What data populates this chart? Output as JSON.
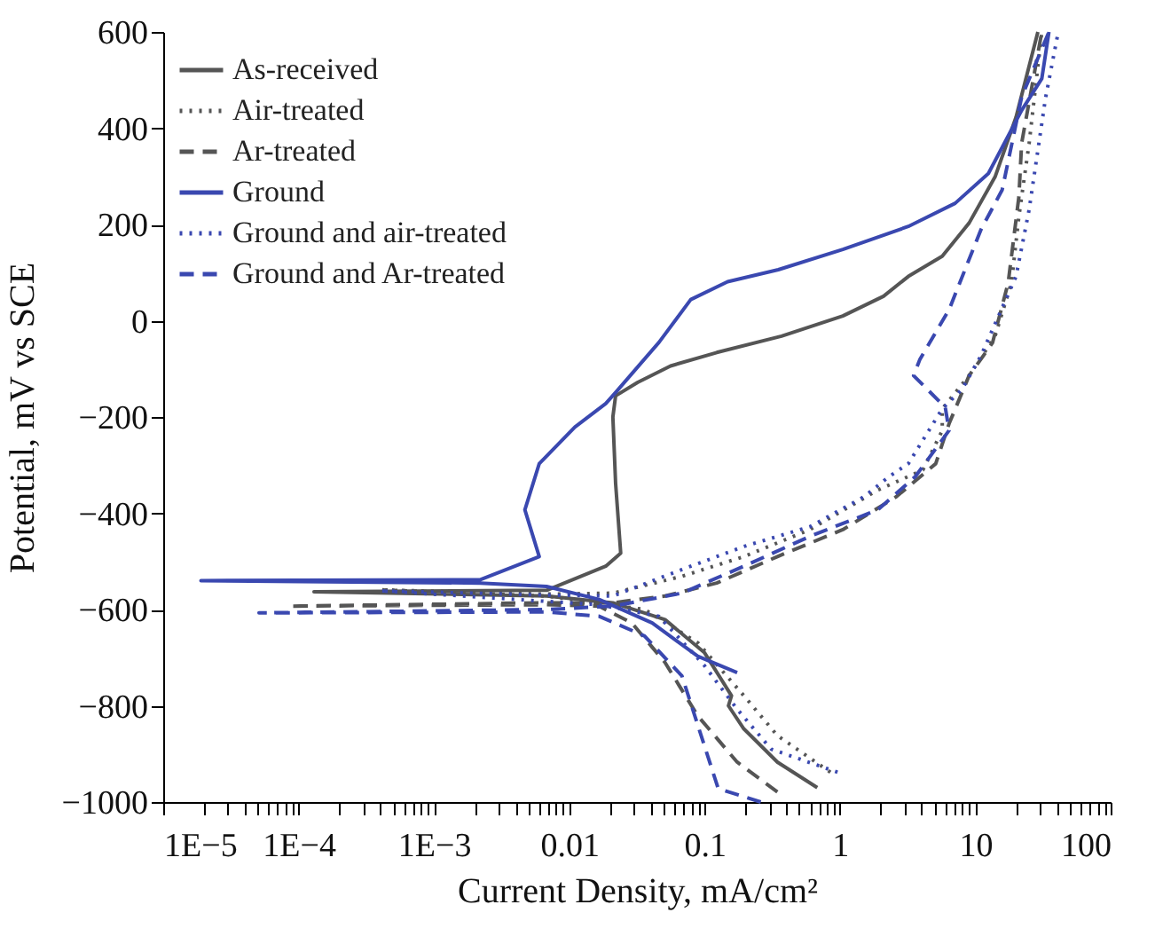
{
  "chart_data": {
    "type": "line",
    "xlabel": "Current Density, mA/cm²",
    "ylabel": "Potential, mV vs SCE",
    "log": "x",
    "xlim": [
      1e-05,
      100
    ],
    "ylim": [
      -1000,
      600
    ],
    "xticks": [
      {
        "value": 1e-05,
        "label": "1E−5"
      },
      {
        "value": 2e-05,
        "label": null
      },
      {
        "value": 3e-05,
        "label": null
      },
      {
        "value": 4e-05,
        "label": null
      },
      {
        "value": 5e-05,
        "label": null
      },
      {
        "value": 6e-05,
        "label": null
      },
      {
        "value": 7e-05,
        "label": null
      },
      {
        "value": 8e-05,
        "label": null
      },
      {
        "value": 9e-05,
        "label": null
      },
      {
        "value": 0.0001,
        "label": "1E−4"
      },
      {
        "value": 0.0002,
        "label": null
      },
      {
        "value": 0.0003,
        "label": null
      },
      {
        "value": 0.0004,
        "label": null
      },
      {
        "value": 0.0005,
        "label": null
      },
      {
        "value": 0.0006,
        "label": null
      },
      {
        "value": 0.0007,
        "label": null
      },
      {
        "value": 0.0008,
        "label": null
      },
      {
        "value": 0.0009,
        "label": null
      },
      {
        "value": 0.001,
        "label": "1E−3"
      },
      {
        "value": 0.002,
        "label": null
      },
      {
        "value": 0.003,
        "label": null
      },
      {
        "value": 0.004,
        "label": null
      },
      {
        "value": 0.005,
        "label": null
      },
      {
        "value": 0.006,
        "label": null
      },
      {
        "value": 0.007,
        "label": null
      },
      {
        "value": 0.008,
        "label": null
      },
      {
        "value": 0.009,
        "label": null
      },
      0.01,
      {
        "value": 0.02,
        "label": null
      },
      {
        "value": 0.03,
        "label": null
      },
      {
        "value": 0.04,
        "label": null
      },
      {
        "value": 0.05,
        "label": null
      },
      {
        "value": 0.06,
        "label": null
      },
      {
        "value": 0.07,
        "label": null
      },
      {
        "value": 0.08,
        "label": null
      },
      {
        "value": 0.09,
        "label": null
      },
      0.1,
      {
        "value": 0.2,
        "label": null
      },
      {
        "value": 0.3,
        "label": null
      },
      {
        "value": 0.4,
        "label": null
      },
      {
        "value": 0.5,
        "label": null
      },
      {
        "value": 0.6,
        "label": null
      },
      {
        "value": 0.7,
        "label": null
      },
      {
        "value": 0.8,
        "label": null
      },
      {
        "value": 0.9,
        "label": null
      },
      1,
      {
        "value": 2,
        "label": null
      },
      {
        "value": 3,
        "label": null
      },
      {
        "value": 4,
        "label": null
      },
      {
        "value": 5,
        "label": null
      },
      {
        "value": 6,
        "label": null
      },
      {
        "value": 7,
        "label": null
      },
      {
        "value": 8,
        "label": null
      },
      {
        "value": 9,
        "label": null
      },
      10,
      {
        "value": 20,
        "label": null
      },
      {
        "value": 30,
        "label": null
      },
      {
        "value": 40,
        "label": null
      },
      {
        "value": 50,
        "label": null
      },
      {
        "value": 60,
        "label": null
      },
      {
        "value": 70,
        "label": null
      },
      {
        "value": 80,
        "label": null
      },
      {
        "value": 90,
        "label": null
      },
      100
    ],
    "yticks": [
      {
        "value": -1000,
        "label": "−1000"
      },
      {
        "value": -800,
        "label": "−800"
      },
      {
        "value": -600,
        "label": "−600"
      },
      {
        "value": -400,
        "label": "−400"
      },
      {
        "value": -200,
        "label": "−200"
      },
      0,
      200,
      400,
      600
    ],
    "grid": false,
    "legend": "top left",
    "marker": "none",
    "series": [
      {
        "name": "As-received",
        "color": "#555555",
        "line_style": "solid",
        "x": [
          0.68,
          0.345,
          0.195,
          0.15,
          0.158,
          0.1,
          0.051,
          0.021,
          0.0068,
          0.00013,
          0.0068,
          0.0186,
          0.024,
          0.022,
          0.021,
          0.022,
          0.032,
          0.056,
          0.123,
          0.37,
          1.05,
          2.1,
          3.2,
          5.7,
          9,
          14,
          20,
          29
        ],
        "values": [
          -970,
          -917,
          -848,
          -800,
          -779,
          -690,
          -621,
          -586,
          -572,
          -563,
          -560,
          -510,
          -483,
          -338,
          -200,
          -156,
          -128,
          -94,
          -66,
          -32,
          10,
          51,
          92,
          134,
          203,
          299,
          423,
          600
        ]
      },
      {
        "name": "Air-treated",
        "color": "#555555",
        "line_style": "dotted",
        "x": [
          0.85,
          0.345,
          0.195,
          0.089,
          0.036,
          0.0068,
          0.0004,
          0.0068,
          0.021,
          0.068,
          0.195,
          0.6,
          1.9,
          4.1,
          5.7,
          5.7,
          9,
          14,
          18.5,
          21,
          25,
          31
        ],
        "values": [
          -938,
          -862,
          -779,
          -669,
          -600,
          -572,
          -559,
          -568,
          -566,
          -531,
          -490,
          -434,
          -352,
          -310,
          -228,
          -183,
          -114,
          -32,
          79,
          217,
          369,
          600
        ]
      },
      {
        "name": "Ar-treated",
        "color": "#555555",
        "line_style": "dashed",
        "x": [
          0.345,
          0.174,
          0.089,
          0.051,
          0.029,
          0.0166,
          0.0068,
          8.5e-05,
          0.0068,
          0.021,
          0.051,
          0.123,
          0.345,
          1.05,
          2.6,
          5.1,
          6.4,
          9,
          13.4,
          17.5,
          21,
          22,
          31
        ],
        "values": [
          -979,
          -917,
          -821,
          -710,
          -628,
          -593,
          -590,
          -593,
          -586,
          -586,
          -572,
          -545,
          -490,
          -434,
          -366,
          -297,
          -214,
          -114,
          -46,
          79,
          258,
          369,
          600
        ]
      },
      {
        "name": "Ground",
        "color": "#3a48b0",
        "line_style": "solid",
        "x": [
          0.174,
          0.089,
          0.041,
          0.0166,
          0.0068,
          0.0022,
          1.9e-05,
          0.0022,
          0.006,
          0.0047,
          0.006,
          0.011,
          0.0186,
          0.022,
          0.046,
          0.079,
          0.148,
          0.35,
          1.05,
          3.2,
          7.1,
          12.5,
          22,
          31,
          35
        ],
        "values": [
          -731,
          -697,
          -628,
          -579,
          -552,
          -545,
          -540,
          -538,
          -490,
          -393,
          -297,
          -221,
          -172,
          -149,
          -45,
          44,
          81,
          106,
          148,
          196,
          244,
          306,
          437,
          503,
          600
        ]
      },
      {
        "name": "Ground and air-treated",
        "color": "#3a48b0",
        "line_style": "dotted",
        "x": [
          0.96,
          0.31,
          0.174,
          0.1,
          0.046,
          0.0166,
          0.0004,
          0.0068,
          0.021,
          0.068,
          0.195,
          0.6,
          1.5,
          2.3,
          3.2,
          5.7,
          8,
          11,
          20,
          25,
          33,
          41
        ],
        "values": [
          -938,
          -890,
          -807,
          -717,
          -614,
          -590,
          -561,
          -570,
          -572,
          -517,
          -469,
          -428,
          -366,
          -324,
          -297,
          -183,
          -142,
          -73,
          92,
          231,
          462,
          600
        ]
      },
      {
        "name": "Ground and Ar-treated",
        "color": "#3a48b0",
        "line_style": "dashed",
        "x": [
          0.26,
          0.126,
          0.068,
          0.036,
          0.0166,
          0.0068,
          5.1e-05,
          0.0068,
          0.021,
          0.068,
          0.195,
          0.6,
          1.9,
          3.6,
          6.4,
          6.0,
          3.5,
          3.9,
          6.4,
          11,
          15.8,
          22,
          35
        ],
        "values": [
          -1000,
          -972,
          -738,
          -655,
          -614,
          -605,
          -607,
          -600,
          -593,
          -566,
          -510,
          -448,
          -393,
          -324,
          -228,
          -180,
          -114,
          -80,
          23,
          189,
          272,
          465,
          600
        ]
      }
    ]
  }
}
